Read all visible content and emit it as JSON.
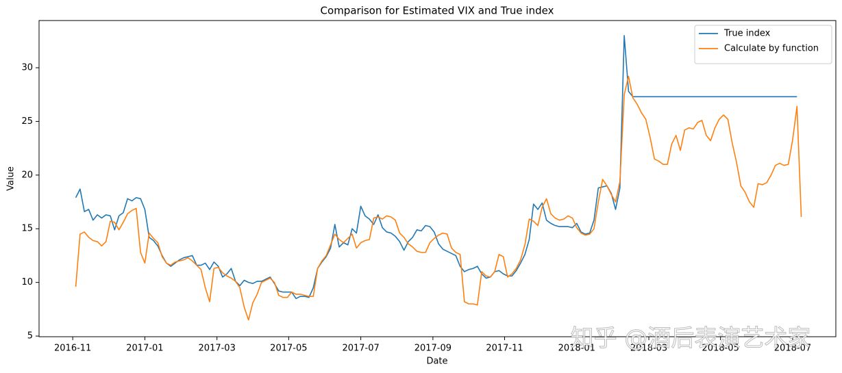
{
  "chart_data": {
    "type": "line",
    "title": "Comparison for Estimated VIX and True index",
    "xlabel": "Date",
    "ylabel": "Value",
    "watermark": "知乎 @酒后表演艺术家",
    "xlim": [
      2016.755,
      2018.6
    ],
    "ylim": [
      4.94,
      34.4
    ],
    "xticks": [
      {
        "value": 2016.833,
        "label": "2016-11"
      },
      {
        "value": 2017.0,
        "label": "2017-01"
      },
      {
        "value": 2017.167,
        "label": "2017-03"
      },
      {
        "value": 2017.333,
        "label": "2017-05"
      },
      {
        "value": 2017.5,
        "label": "2017-07"
      },
      {
        "value": 2017.667,
        "label": "2017-09"
      },
      {
        "value": 2017.833,
        "label": "2017-11"
      },
      {
        "value": 2018.0,
        "label": "2018-01"
      },
      {
        "value": 2018.167,
        "label": "2018-03"
      },
      {
        "value": 2018.333,
        "label": "2018-05"
      },
      {
        "value": 2018.5,
        "label": "2018-07"
      }
    ],
    "yticks": [
      5,
      10,
      15,
      20,
      25,
      30
    ],
    "grid": false,
    "legend": "upper right",
    "x": [
      2016.84,
      2016.85,
      2016.86,
      2016.87,
      2016.88,
      2016.89,
      2016.9,
      2016.91,
      2016.92,
      2016.93,
      2016.94,
      2016.95,
      2016.96,
      2016.97,
      2016.98,
      2016.99,
      2017.0,
      2017.01,
      2017.02,
      2017.03,
      2017.04,
      2017.05,
      2017.06,
      2017.07,
      2017.08,
      2017.09,
      2017.1,
      2017.11,
      2017.12,
      2017.13,
      2017.14,
      2017.15,
      2017.16,
      2017.17,
      2017.18,
      2017.19,
      2017.2,
      2017.21,
      2017.22,
      2017.23,
      2017.24,
      2017.25,
      2017.26,
      2017.27,
      2017.28,
      2017.29,
      2017.3,
      2017.31,
      2017.32,
      2017.33,
      2017.34,
      2017.35,
      2017.36,
      2017.37,
      2017.38,
      2017.39,
      2017.4,
      2017.41,
      2017.42,
      2017.43,
      2017.44,
      2017.45,
      2017.46,
      2017.47,
      2017.48,
      2017.49,
      2017.5,
      2017.51,
      2017.52,
      2017.53,
      2017.54,
      2017.55,
      2017.56,
      2017.57,
      2017.58,
      2017.59,
      2017.6,
      2017.61,
      2017.62,
      2017.63,
      2017.64,
      2017.65,
      2017.66,
      2017.67,
      2017.68,
      2017.69,
      2017.7,
      2017.71,
      2017.72,
      2017.73,
      2017.74,
      2017.75,
      2017.76,
      2017.77,
      2017.78,
      2017.79,
      2017.8,
      2017.81,
      2017.82,
      2017.83,
      2017.84,
      2017.85,
      2017.86,
      2017.87,
      2017.88,
      2017.89,
      2017.9,
      2017.91,
      2017.92,
      2017.93,
      2017.94,
      2017.95,
      2017.96,
      2017.97,
      2017.98,
      2017.99,
      2018.0,
      2018.01,
      2018.02,
      2018.03,
      2018.04,
      2018.05,
      2018.06,
      2018.07,
      2018.08,
      2018.09,
      2018.1,
      2018.11,
      2018.12,
      2018.13,
      2018.14,
      2018.15,
      2018.16,
      2018.17,
      2018.18,
      2018.19,
      2018.2,
      2018.21,
      2018.22,
      2018.23,
      2018.24,
      2018.25,
      2018.26,
      2018.27,
      2018.28,
      2018.29,
      2018.3,
      2018.31,
      2018.32,
      2018.33,
      2018.34,
      2018.35,
      2018.36,
      2018.37,
      2018.38,
      2018.39,
      2018.4,
      2018.41,
      2018.42,
      2018.43,
      2018.44,
      2018.45,
      2018.46,
      2018.47,
      2018.48,
      2018.49,
      2018.5,
      2018.51,
      2018.52
    ],
    "series": [
      {
        "name": "True index",
        "color": "#1f77b4",
        "values": [
          17.9,
          18.7,
          16.6,
          16.8,
          15.8,
          16.3,
          16.0,
          16.3,
          16.2,
          14.9,
          16.2,
          16.5,
          17.8,
          17.6,
          17.9,
          17.8,
          16.8,
          14.2,
          13.9,
          13.4,
          12.5,
          11.8,
          11.5,
          11.8,
          12.1,
          12.3,
          12.4,
          12.5,
          11.6,
          11.6,
          11.8,
          11.2,
          11.9,
          11.5,
          10.5,
          10.8,
          11.3,
          10.1,
          9.7,
          10.2,
          10.0,
          9.9,
          10.1,
          10.1,
          10.3,
          10.5,
          9.9,
          9.2,
          9.1,
          9.1,
          9.1,
          8.5,
          8.7,
          8.7,
          8.6,
          9.5,
          11.3,
          11.9,
          12.4,
          13.2,
          15.4,
          13.3,
          13.7,
          13.5,
          15.0,
          14.6,
          17.1,
          16.2,
          15.9,
          15.4,
          16.3,
          15.1,
          14.7,
          14.6,
          14.3,
          13.8,
          13.0,
          13.8,
          14.2,
          14.9,
          14.8,
          15.3,
          15.2,
          14.7,
          13.6,
          13.1,
          12.9,
          12.7,
          12.5,
          11.5,
          11.0,
          11.2,
          11.3,
          11.5,
          10.8,
          10.4,
          10.5,
          11.0,
          11.1,
          10.8,
          10.6,
          10.6,
          11.1,
          11.8,
          12.6,
          14.0,
          17.3,
          16.8,
          17.4,
          15.8,
          15.5,
          15.3,
          15.2,
          15.2,
          15.2,
          15.1,
          15.5,
          14.7,
          14.5,
          14.6,
          15.8,
          18.8,
          18.9,
          19.0,
          18.3,
          16.8,
          18.8,
          33.0,
          27.8,
          27.3,
          27.3,
          27.3,
          27.3,
          27.3,
          27.3,
          27.3,
          27.3,
          27.3,
          27.3,
          27.3,
          27.3,
          27.3,
          27.3,
          27.3,
          27.3,
          27.3,
          27.3,
          27.3,
          27.3,
          27.3,
          27.3,
          27.3,
          27.3,
          27.3,
          27.3,
          27.3,
          27.3,
          27.3,
          27.3,
          27.3,
          27.3,
          27.3,
          27.3,
          27.3,
          27.3,
          27.3,
          27.3,
          27.3,
          null
        ]
      },
      {
        "name": "Calculate by function",
        "color": "#ff7f0e",
        "values": [
          9.6,
          14.5,
          14.7,
          14.2,
          13.9,
          13.8,
          13.4,
          13.8,
          15.7,
          15.6,
          14.9,
          15.6,
          16.4,
          16.7,
          16.9,
          12.8,
          11.8,
          14.6,
          14.1,
          13.7,
          12.4,
          11.8,
          11.6,
          11.9,
          12.0,
          12.1,
          12.3,
          12.0,
          11.6,
          11.2,
          9.5,
          8.2,
          11.3,
          11.4,
          10.9,
          10.6,
          10.4,
          10.1,
          9.5,
          7.7,
          6.5,
          8.1,
          8.9,
          10.0,
          10.2,
          10.4,
          10.0,
          8.8,
          8.6,
          8.6,
          9.1,
          8.9,
          8.9,
          8.8,
          8.7,
          8.7,
          11.3,
          12.0,
          12.5,
          13.5,
          14.5,
          14.0,
          13.7,
          14.1,
          14.5,
          13.2,
          13.7,
          13.9,
          14.0,
          16.0,
          16.1,
          15.9,
          16.2,
          16.1,
          15.8,
          14.6,
          14.2,
          13.6,
          13.3,
          12.9,
          12.8,
          12.8,
          13.7,
          14.1,
          14.4,
          14.6,
          14.5,
          13.2,
          12.8,
          12.6,
          8.2,
          8.0,
          8.0,
          7.9,
          11.0,
          10.6,
          10.5,
          11.0,
          12.6,
          12.4,
          10.5,
          10.8,
          11.3,
          12.1,
          13.5,
          15.9,
          15.7,
          15.3,
          17.0,
          17.8,
          16.4,
          16.0,
          15.8,
          15.9,
          16.2,
          16.0,
          15.1,
          14.6,
          14.4,
          14.5,
          15.0,
          17.5,
          19.6,
          19.0,
          18.2,
          17.5,
          19.4,
          27.5,
          29.2,
          27.2,
          26.6,
          25.8,
          25.2,
          23.5,
          21.5,
          21.3,
          21.0,
          21.0,
          22.9,
          23.7,
          22.3,
          24.2,
          24.4,
          24.3,
          24.9,
          25.1,
          23.7,
          23.2,
          24.4,
          25.2,
          25.6,
          25.2,
          23.0,
          21.2,
          19.0,
          18.4,
          17.5,
          17.0,
          19.2,
          19.1,
          19.3,
          20.0,
          20.9,
          21.1,
          20.9,
          21.0,
          23.3,
          26.4,
          16.1
        ]
      }
    ]
  }
}
